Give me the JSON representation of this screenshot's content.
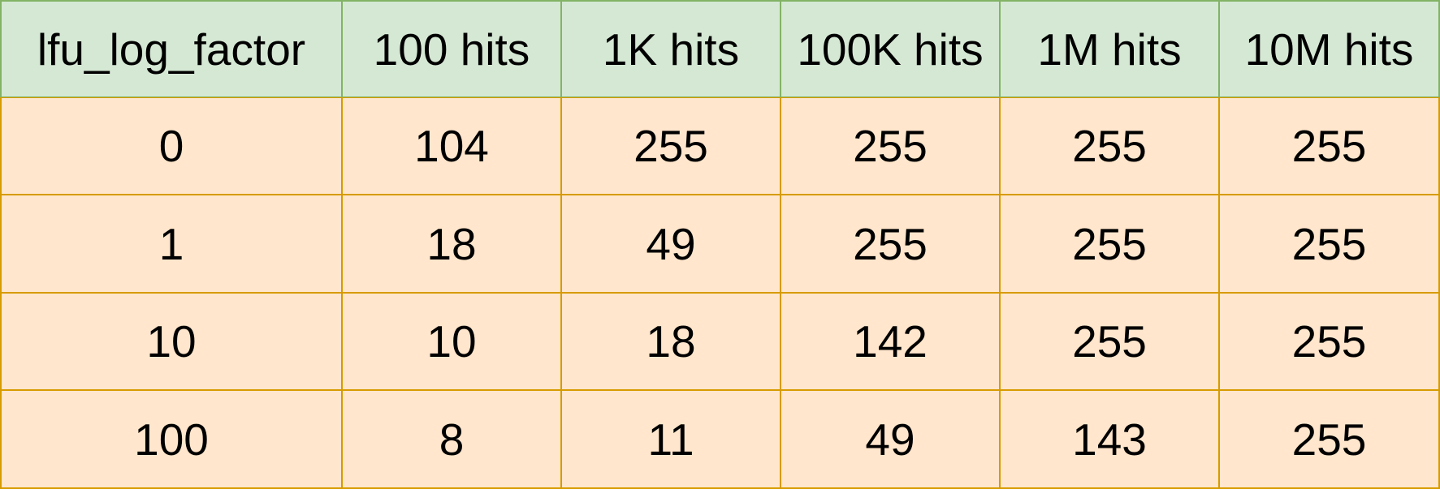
{
  "table": {
    "headers": [
      "lfu_log_factor",
      "100 hits",
      "1K hits",
      "100K hits",
      "1M hits",
      "10M hits"
    ],
    "rows": [
      [
        "0",
        "104",
        "255",
        "255",
        "255",
        "255"
      ],
      [
        "1",
        "18",
        "49",
        "255",
        "255",
        "255"
      ],
      [
        "10",
        "10",
        "18",
        "142",
        "255",
        "255"
      ],
      [
        "100",
        "8",
        "11",
        "49",
        "143",
        "255"
      ]
    ]
  },
  "colors": {
    "header_fill": "#d5e8d4",
    "header_border": "#82b366",
    "body_fill": "#ffe6cc",
    "body_border": "#d79b00"
  }
}
